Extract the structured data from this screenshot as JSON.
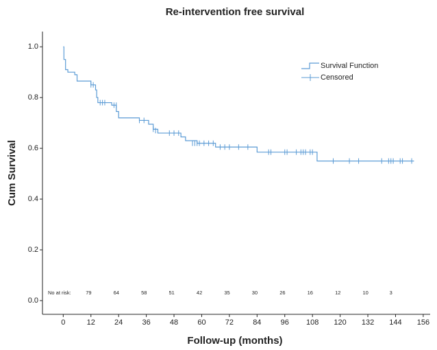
{
  "chart_data": {
    "type": "step",
    "title": "Re-intervention free survival",
    "xlabel": "Follow-up (months)",
    "ylabel": "Cum Survival",
    "xlim": [
      -9,
      159
    ],
    "ylim": [
      -0.054,
      1.06
    ],
    "xticks": [
      0,
      12,
      24,
      36,
      48,
      60,
      72,
      84,
      96,
      108,
      120,
      132,
      144,
      156
    ],
    "yticks": [
      {
        "value": 0,
        "label": "0.0"
      },
      {
        "value": 0.2,
        "label": "0.2"
      },
      {
        "value": 0.4,
        "label": "0.4"
      },
      {
        "value": 0.6,
        "label": "0.6"
      },
      {
        "value": 0.8,
        "label": "0.8"
      },
      {
        "value": 1,
        "label": "1.0"
      }
    ],
    "legend": "upper right",
    "series": [
      {
        "name": "Survival Function",
        "color": "#5b9bd5",
        "x": [
          0,
          0.3,
          1,
          2,
          5,
          6,
          12,
          14,
          14.5,
          15,
          21,
          23,
          24,
          33,
          37,
          39,
          41,
          51,
          53,
          58,
          66,
          84,
          110,
          152
        ],
        "values": [
          1.0,
          0.95,
          0.91,
          0.9,
          0.89,
          0.865,
          0.85,
          0.83,
          0.8,
          0.78,
          0.77,
          0.745,
          0.72,
          0.71,
          0.695,
          0.675,
          0.66,
          0.645,
          0.63,
          0.62,
          0.605,
          0.585,
          0.55,
          0.55
        ]
      },
      {
        "name": "Censored",
        "color": "#5b9bd5",
        "x": [
          12,
          13,
          16,
          17,
          18,
          22,
          23,
          33,
          35,
          39,
          40,
          46,
          48,
          50,
          56,
          57,
          58,
          59,
          61,
          63,
          65,
          68,
          70,
          72,
          76,
          80,
          89,
          90,
          96,
          97,
          101,
          103,
          104,
          105,
          107,
          108,
          117,
          124,
          128,
          138,
          141,
          142,
          143,
          146,
          147,
          151
        ],
        "values": [
          0.85,
          0.85,
          0.78,
          0.78,
          0.78,
          0.77,
          0.77,
          0.71,
          0.71,
          0.675,
          0.67,
          0.66,
          0.66,
          0.66,
          0.62,
          0.62,
          0.62,
          0.62,
          0.62,
          0.62,
          0.62,
          0.605,
          0.605,
          0.605,
          0.605,
          0.605,
          0.585,
          0.585,
          0.585,
          0.585,
          0.585,
          0.585,
          0.585,
          0.585,
          0.585,
          0.585,
          0.55,
          0.55,
          0.55,
          0.55,
          0.55,
          0.55,
          0.55,
          0.55,
          0.55,
          0.55
        ]
      }
    ],
    "at_risk": {
      "label": "No at risk:",
      "x": [
        11,
        23,
        35,
        47,
        59,
        71,
        83,
        95,
        107,
        119,
        131,
        142
      ],
      "values": [
        79,
        64,
        58,
        51,
        42,
        35,
        30,
        26,
        16,
        12,
        10,
        3
      ]
    }
  }
}
